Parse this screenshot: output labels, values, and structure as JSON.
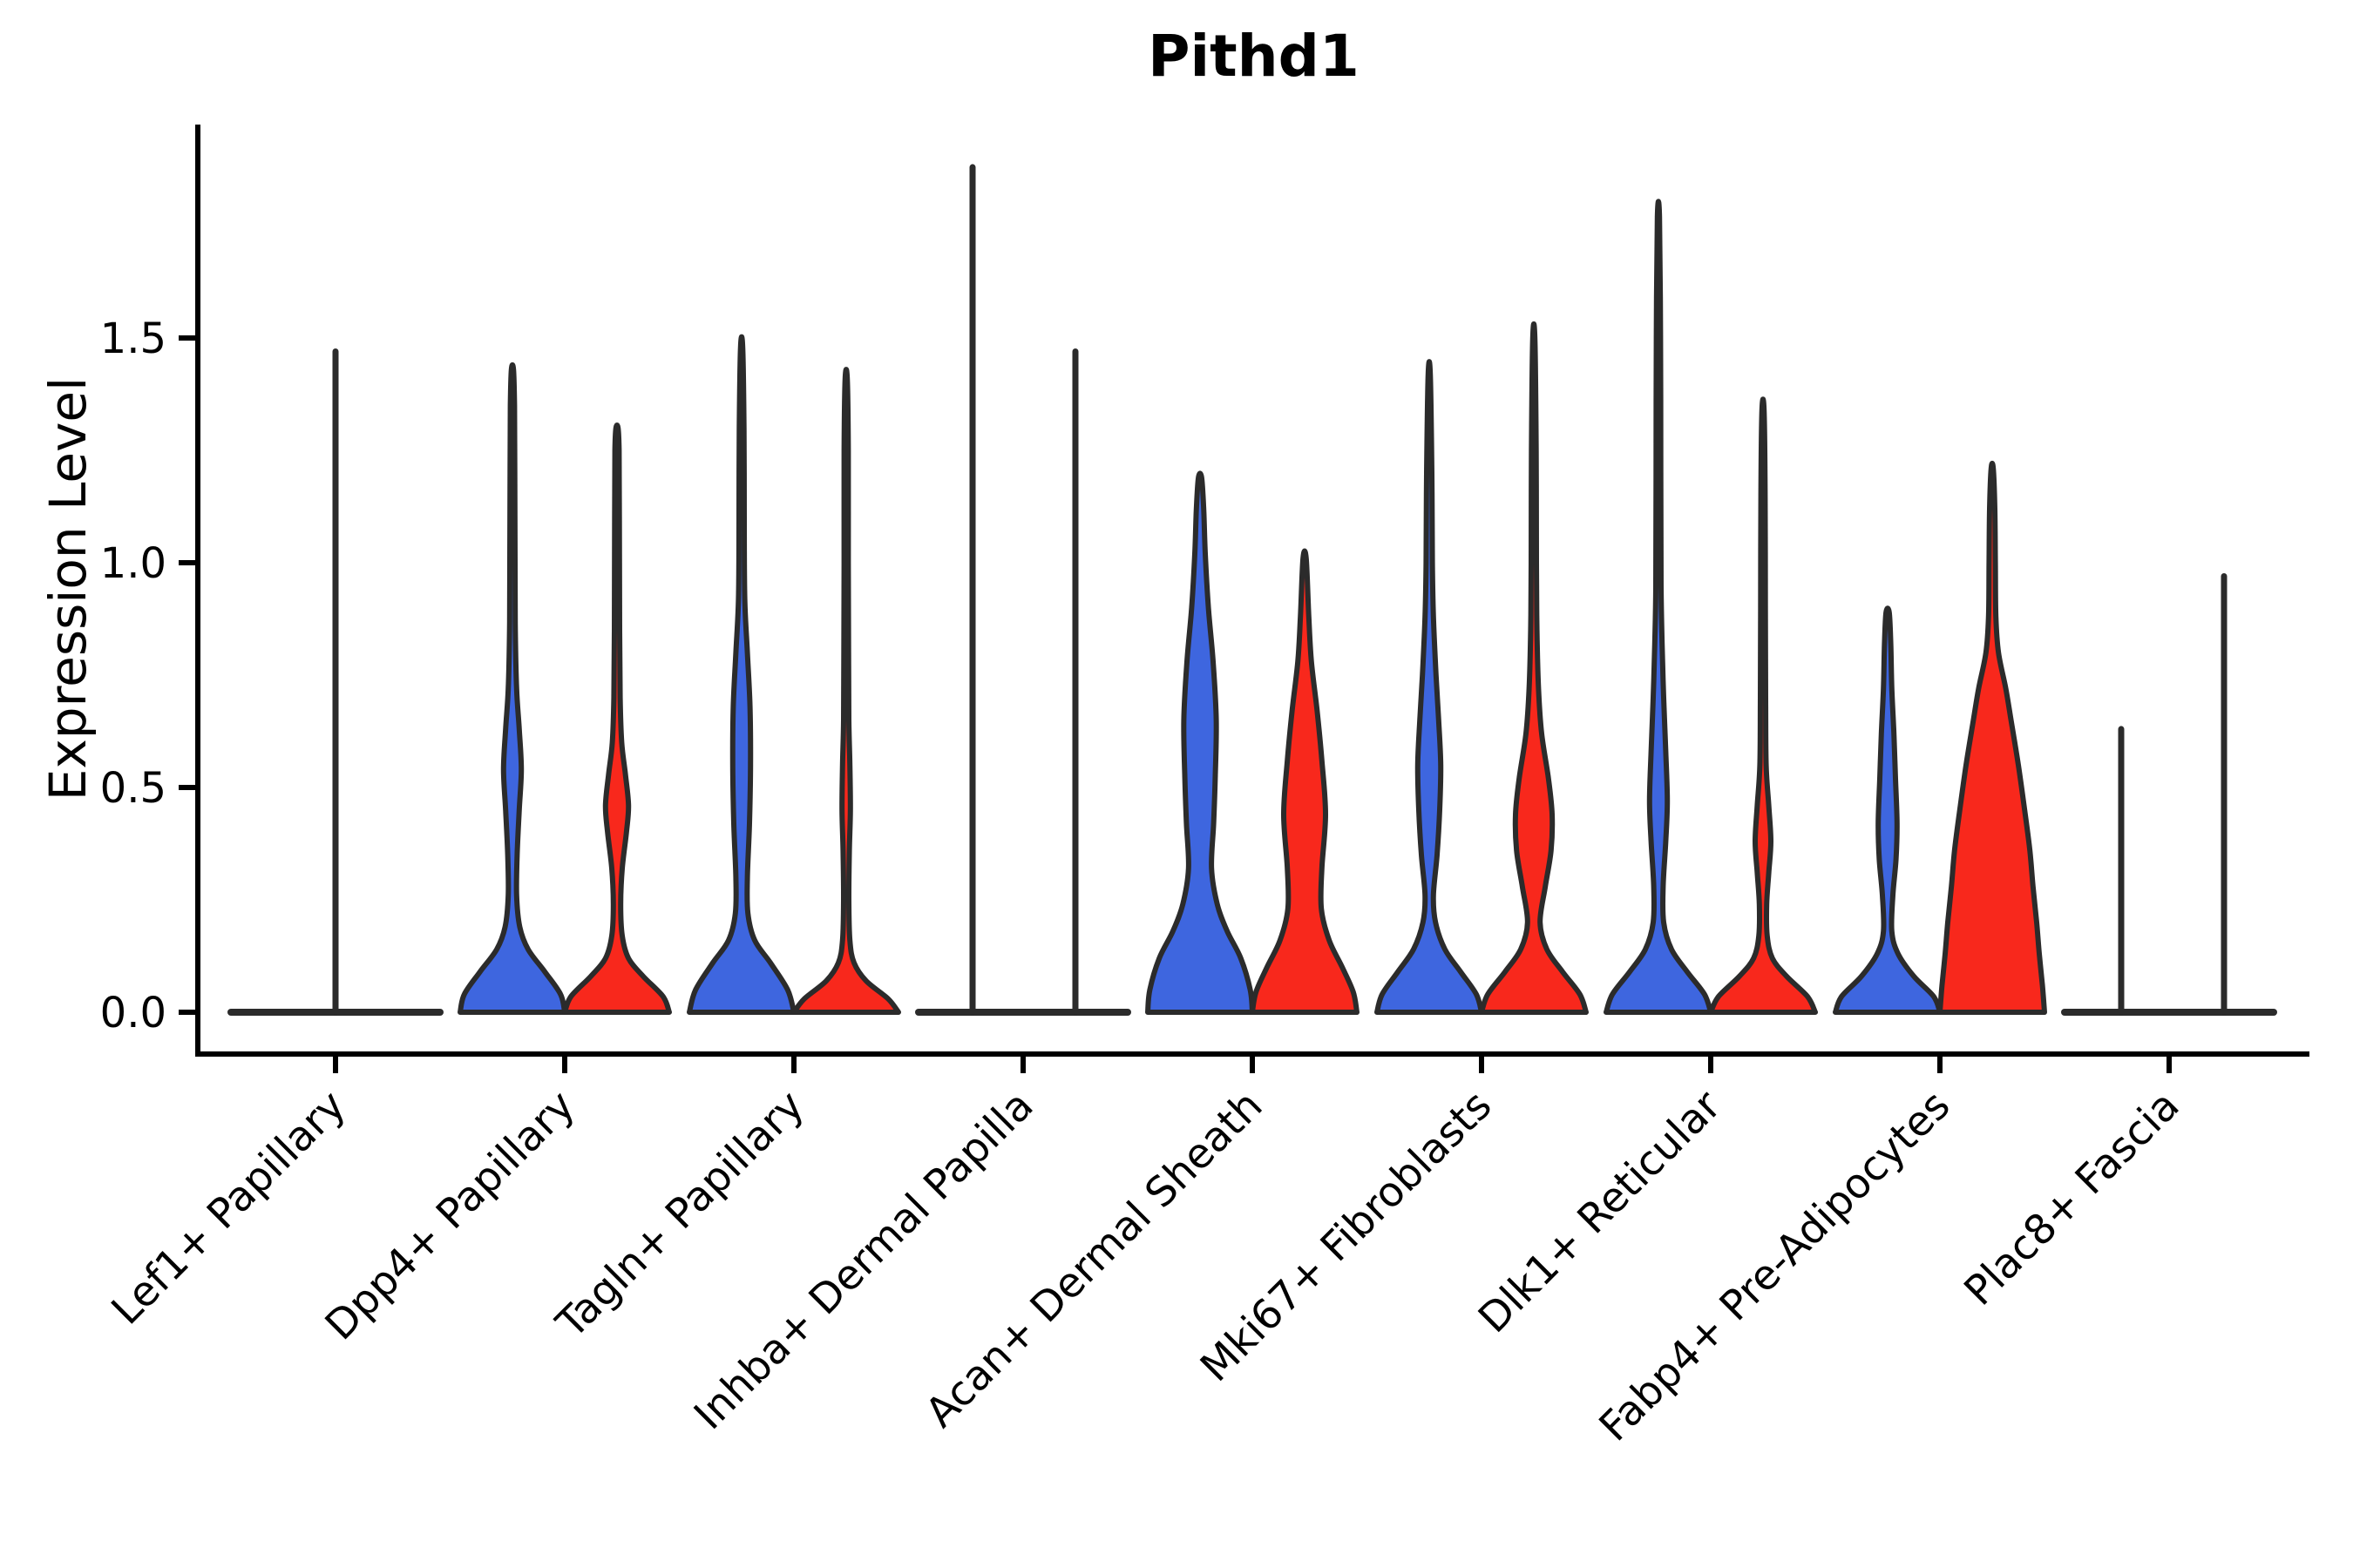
{
  "title": "Pithd1",
  "y_axis": {
    "label": "Expression Level",
    "ticks": [
      {
        "label": "0.0",
        "value": 0.0
      },
      {
        "label": "0.5",
        "value": 0.5
      },
      {
        "label": "1.0",
        "value": 1.0
      },
      {
        "label": "1.5",
        "value": 1.5
      }
    ],
    "range_shown": [
      0.0,
      1.95
    ]
  },
  "colors": {
    "group1_blue": "#3E66DF",
    "group2_red": "#F8281C",
    "outline": "#2B2B2B",
    "axis": "#000000",
    "background": "#ffffff"
  },
  "chart_data": {
    "type": "violin",
    "title": "Pithd1",
    "xlabel": "",
    "ylabel": "Expression Level",
    "grid": false,
    "legend": "none",
    "ylim": [
      -0.09,
      1.95
    ],
    "groups": [
      {
        "id": "blue",
        "color": "#3E66DF"
      },
      {
        "id": "red",
        "color": "#F8281C"
      }
    ],
    "categories": [
      {
        "label": "Lef1+ Papillary",
        "flat_baseline": true,
        "baseline_half_span": 120,
        "violins": [
          {
            "group": "blue",
            "shape": "spike",
            "spike_offset": 0,
            "max": 1.47
          },
          {
            "group": "red",
            "shape": "none",
            "max": 0.0
          }
        ]
      },
      {
        "label": "Dpp4+ Papillary",
        "violins": [
          {
            "group": "blue",
            "shape": "density",
            "max": 1.43,
            "profile": [
              [
                0,
                1.0
              ],
              [
                0.04,
                0.92
              ],
              [
                0.09,
                0.62
              ],
              [
                0.14,
                0.3
              ],
              [
                0.19,
                0.14
              ],
              [
                0.26,
                0.08
              ],
              [
                0.35,
                0.09
              ],
              [
                0.45,
                0.13
              ],
              [
                0.54,
                0.17
              ],
              [
                0.63,
                0.13
              ],
              [
                0.72,
                0.08
              ],
              [
                0.85,
                0.055
              ],
              [
                1.0,
                0.05
              ],
              [
                1.2,
                0.045
              ],
              [
                1.35,
                0.04
              ],
              [
                1.43,
                0.02
              ]
            ]
          },
          {
            "group": "red",
            "shape": "density",
            "max": 1.3,
            "profile": [
              [
                0,
                1.0
              ],
              [
                0.035,
                0.88
              ],
              [
                0.08,
                0.5
              ],
              [
                0.12,
                0.22
              ],
              [
                0.17,
                0.1
              ],
              [
                0.24,
                0.07
              ],
              [
                0.32,
                0.1
              ],
              [
                0.4,
                0.18
              ],
              [
                0.46,
                0.22
              ],
              [
                0.53,
                0.16
              ],
              [
                0.6,
                0.09
              ],
              [
                0.7,
                0.06
              ],
              [
                0.85,
                0.05
              ],
              [
                1.1,
                0.045
              ],
              [
                1.25,
                0.04
              ],
              [
                1.3,
                0.02
              ]
            ]
          }
        ]
      },
      {
        "label": "Tagln+ Papillary",
        "violins": [
          {
            "group": "blue",
            "shape": "density",
            "max": 1.48,
            "profile": [
              [
                0,
                1.0
              ],
              [
                0.05,
                0.88
              ],
              [
                0.11,
                0.55
              ],
              [
                0.16,
                0.25
              ],
              [
                0.22,
                0.12
              ],
              [
                0.3,
                0.11
              ],
              [
                0.42,
                0.15
              ],
              [
                0.55,
                0.17
              ],
              [
                0.68,
                0.16
              ],
              [
                0.8,
                0.11
              ],
              [
                0.92,
                0.06
              ],
              [
                1.1,
                0.05
              ],
              [
                1.3,
                0.045
              ],
              [
                1.48,
                0.02
              ]
            ]
          },
          {
            "group": "red",
            "shape": "density",
            "max": 1.41,
            "profile": [
              [
                0,
                1.0
              ],
              [
                0.03,
                0.8
              ],
              [
                0.07,
                0.38
              ],
              [
                0.11,
                0.15
              ],
              [
                0.16,
                0.07
              ],
              [
                0.25,
                0.05
              ],
              [
                0.36,
                0.06
              ],
              [
                0.45,
                0.08
              ],
              [
                0.55,
                0.07
              ],
              [
                0.65,
                0.05
              ],
              [
                0.8,
                0.045
              ],
              [
                1.0,
                0.04
              ],
              [
                1.25,
                0.04
              ],
              [
                1.41,
                0.02
              ]
            ]
          }
        ]
      },
      {
        "label": "Inhba+ Dermal Papilla",
        "flat_baseline": true,
        "baseline_half_span": 120,
        "violins": [
          {
            "group": "blue",
            "shape": "spike",
            "spike_offset": -58,
            "max": 1.88
          },
          {
            "group": "red",
            "shape": "spike",
            "spike_offset": 60,
            "max": 1.47
          }
        ]
      },
      {
        "label": "Acan+ Dermal Sheath",
        "violins": [
          {
            "group": "blue",
            "shape": "density",
            "max": 1.19,
            "profile": [
              [
                0,
                1.0
              ],
              [
                0.05,
                0.96
              ],
              [
                0.12,
                0.78
              ],
              [
                0.18,
                0.52
              ],
              [
                0.24,
                0.33
              ],
              [
                0.32,
                0.22
              ],
              [
                0.42,
                0.26
              ],
              [
                0.52,
                0.29
              ],
              [
                0.65,
                0.31
              ],
              [
                0.78,
                0.25
              ],
              [
                0.9,
                0.16
              ],
              [
                1.02,
                0.1
              ],
              [
                1.12,
                0.07
              ],
              [
                1.19,
                0.03
              ]
            ]
          },
          {
            "group": "red",
            "shape": "density",
            "max": 1.01,
            "profile": [
              [
                0,
                1.0
              ],
              [
                0.045,
                0.93
              ],
              [
                0.1,
                0.72
              ],
              [
                0.16,
                0.47
              ],
              [
                0.23,
                0.32
              ],
              [
                0.32,
                0.33
              ],
              [
                0.44,
                0.4
              ],
              [
                0.56,
                0.33
              ],
              [
                0.67,
                0.24
              ],
              [
                0.78,
                0.13
              ],
              [
                0.88,
                0.08
              ],
              [
                1.01,
                0.03
              ]
            ]
          }
        ]
      },
      {
        "label": "Mki67+ Fibroblasts",
        "violins": [
          {
            "group": "blue",
            "shape": "density",
            "max": 1.42,
            "profile": [
              [
                0,
                1.0
              ],
              [
                0.04,
                0.9
              ],
              [
                0.09,
                0.6
              ],
              [
                0.14,
                0.3
              ],
              [
                0.2,
                0.12
              ],
              [
                0.26,
                0.08
              ],
              [
                0.35,
                0.15
              ],
              [
                0.45,
                0.2
              ],
              [
                0.55,
                0.22
              ],
              [
                0.65,
                0.18
              ],
              [
                0.75,
                0.13
              ],
              [
                0.88,
                0.08
              ],
              [
                1.0,
                0.06
              ],
              [
                1.2,
                0.05
              ],
              [
                1.42,
                0.02
              ]
            ]
          },
          {
            "group": "red",
            "shape": "density",
            "max": 1.5,
            "profile": [
              [
                0,
                1.0
              ],
              [
                0.04,
                0.88
              ],
              [
                0.09,
                0.55
              ],
              [
                0.14,
                0.25
              ],
              [
                0.2,
                0.12
              ],
              [
                0.28,
                0.22
              ],
              [
                0.36,
                0.33
              ],
              [
                0.44,
                0.35
              ],
              [
                0.52,
                0.28
              ],
              [
                0.62,
                0.15
              ],
              [
                0.72,
                0.09
              ],
              [
                0.85,
                0.06
              ],
              [
                1.0,
                0.05
              ],
              [
                1.25,
                0.045
              ],
              [
                1.5,
                0.02
              ]
            ]
          }
        ]
      },
      {
        "label": "Dlk1+ Reticular",
        "violins": [
          {
            "group": "blue",
            "shape": "density",
            "max": 1.77,
            "profile": [
              [
                0,
                1.0
              ],
              [
                0.04,
                0.88
              ],
              [
                0.09,
                0.55
              ],
              [
                0.14,
                0.25
              ],
              [
                0.2,
                0.1
              ],
              [
                0.28,
                0.09
              ],
              [
                0.38,
                0.14
              ],
              [
                0.47,
                0.17
              ],
              [
                0.58,
                0.14
              ],
              [
                0.7,
                0.1
              ],
              [
                0.82,
                0.07
              ],
              [
                0.95,
                0.05
              ],
              [
                1.2,
                0.045
              ],
              [
                1.5,
                0.04
              ],
              [
                1.77,
                0.02
              ]
            ]
          },
          {
            "group": "red",
            "shape": "density",
            "max": 1.34,
            "profile": [
              [
                0,
                1.0
              ],
              [
                0.035,
                0.85
              ],
              [
                0.08,
                0.45
              ],
              [
                0.12,
                0.18
              ],
              [
                0.17,
                0.08
              ],
              [
                0.24,
                0.07
              ],
              [
                0.31,
                0.11
              ],
              [
                0.38,
                0.15
              ],
              [
                0.46,
                0.11
              ],
              [
                0.55,
                0.06
              ],
              [
                0.7,
                0.05
              ],
              [
                0.9,
                0.045
              ],
              [
                1.15,
                0.04
              ],
              [
                1.34,
                0.02
              ]
            ]
          }
        ]
      },
      {
        "label": "Fabp4+ Pre-Adipocytes",
        "violins": [
          {
            "group": "blue",
            "shape": "density",
            "max": 0.89,
            "profile": [
              [
                0,
                1.0
              ],
              [
                0.035,
                0.88
              ],
              [
                0.08,
                0.5
              ],
              [
                0.13,
                0.2
              ],
              [
                0.18,
                0.08
              ],
              [
                0.26,
                0.1
              ],
              [
                0.34,
                0.16
              ],
              [
                0.42,
                0.18
              ],
              [
                0.52,
                0.15
              ],
              [
                0.62,
                0.12
              ],
              [
                0.72,
                0.08
              ],
              [
                0.82,
                0.06
              ],
              [
                0.89,
                0.03
              ]
            ]
          },
          {
            "group": "red",
            "shape": "density",
            "max": 1.21,
            "profile": [
              [
                0,
                1.0
              ],
              [
                0.06,
                0.96
              ],
              [
                0.13,
                0.9
              ],
              [
                0.2,
                0.85
              ],
              [
                0.28,
                0.78
              ],
              [
                0.36,
                0.72
              ],
              [
                0.45,
                0.62
              ],
              [
                0.55,
                0.5
              ],
              [
                0.65,
                0.36
              ],
              [
                0.72,
                0.26
              ],
              [
                0.8,
                0.12
              ],
              [
                0.88,
                0.07
              ],
              [
                1.0,
                0.06
              ],
              [
                1.12,
                0.05
              ],
              [
                1.21,
                0.02
              ]
            ]
          }
        ]
      },
      {
        "label": "Plac8+ Fascia",
        "flat_baseline": true,
        "baseline_half_span": 120,
        "violins": [
          {
            "group": "blue",
            "shape": "spike",
            "spike_offset": -55,
            "max": 0.63
          },
          {
            "group": "red",
            "shape": "spike",
            "spike_offset": 63,
            "max": 0.97
          }
        ]
      }
    ]
  }
}
